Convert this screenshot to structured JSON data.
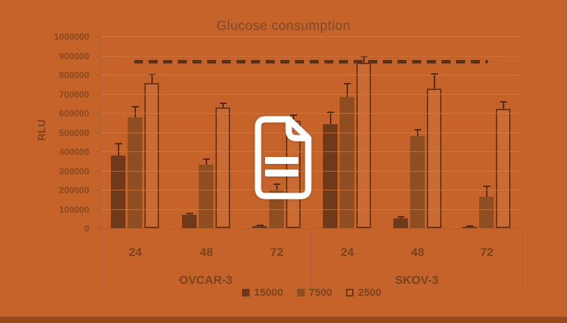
{
  "overlay": {
    "icon": "document-icon",
    "icon_color": "#ffffff"
  },
  "colors": {
    "background": "#C5632B",
    "bottom_band": "#97491b",
    "text": "#7b431f",
    "grid": "#d07943",
    "reference_line": "#5e3013",
    "error_bar": "#53290f"
  },
  "chart_data": {
    "type": "bar",
    "title": "Glucose consumption",
    "xlabel": "",
    "ylabel": "RLU",
    "ylim": [
      0,
      1000000
    ],
    "ytick_step": 100000,
    "grid": true,
    "legend_position": "bottom",
    "group_labels": [
      "OVCAR-3",
      "SKOV-3"
    ],
    "categories": [
      "24",
      "48",
      "72",
      "24",
      "48",
      "72"
    ],
    "series": [
      {
        "name": "15000",
        "color": "#6e3a1b",
        "fill": "solid",
        "values": [
          380000,
          68000,
          12000,
          542000,
          50000,
          8000
        ],
        "errors": [
          60000,
          10000,
          4000,
          63000,
          8000,
          3000
        ]
      },
      {
        "name": "7500",
        "color": "#8f4d22",
        "fill": "solid",
        "values": [
          580000,
          330000,
          200000,
          685000,
          480000,
          165000
        ],
        "errors": [
          52000,
          30000,
          30000,
          68000,
          33000,
          53000
        ]
      },
      {
        "name": "2500",
        "color": "#c96b33",
        "outline": "#6b3517",
        "fill": "outlined",
        "values": [
          755000,
          628000,
          560000,
          862000,
          727000,
          622000
        ],
        "errors": [
          45000,
          22000,
          30000,
          33000,
          75000,
          35000
        ]
      }
    ],
    "reference_line": {
      "value": 870000,
      "style": "dashed"
    }
  }
}
